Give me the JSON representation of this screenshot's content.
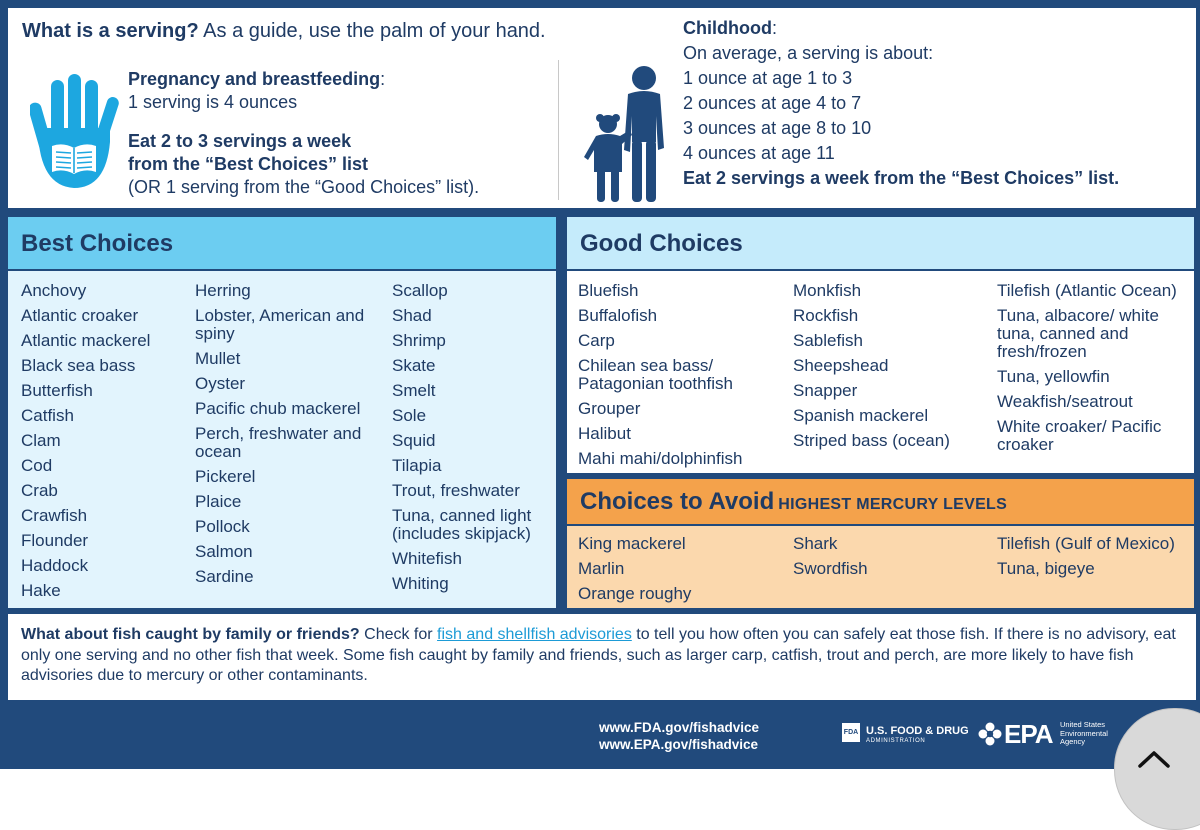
{
  "serving": {
    "title_bold": "What is a serving?",
    "title_rest": " As a guide, use the palm of your hand.",
    "pregnancy_heading": "Pregnancy and breastfeeding",
    "pregnancy_colon": ":",
    "pregnancy_amount": "1 serving is 4 ounces",
    "pregnancy_eat_line1": "Eat 2 to 3 servings a week",
    "pregnancy_eat_line2": "from the “Best Choices” list",
    "pregnancy_alt": "(OR 1 serving from the “Good Choices” list).",
    "childhood_heading": "Childhood",
    "childhood_colon": ":",
    "childhood_intro": "On average, a serving is about:",
    "childhood_amounts": [
      "1 ounce at age 1 to 3",
      "2 ounces at age 4 to 7",
      "3 ounces at age 8 to 10",
      "4 ounces at age 11"
    ],
    "childhood_eat": "Eat 2 servings a week from the “Best Choices” list."
  },
  "best_choices": {
    "title": "Best Choices",
    "col1": [
      "Anchovy",
      "Atlantic croaker",
      "Atlantic mackerel",
      "Black sea bass",
      "Butterfish",
      "Catfish",
      "Clam",
      "Cod",
      "Crab",
      "Crawfish",
      "Flounder",
      "Haddock",
      "Hake"
    ],
    "col2": [
      "Herring",
      "Lobster, American and spiny",
      "Mullet",
      "Oyster",
      "Pacific chub mackerel",
      "Perch, freshwater and ocean",
      "Pickerel",
      "Plaice",
      "Pollock",
      "Salmon",
      "Sardine"
    ],
    "col3": [
      "Scallop",
      "Shad",
      "Shrimp",
      "Skate",
      "Smelt",
      "Sole",
      "Squid",
      "Tilapia",
      "Trout, freshwater",
      "Tuna, canned light (includes skipjack)",
      "Whitefish",
      "Whiting"
    ]
  },
  "good_choices": {
    "title": "Good Choices",
    "col1": [
      "Bluefish",
      "Buffalofish",
      "Carp",
      "Chilean sea bass/ Patagonian toothfish",
      "Grouper",
      "Halibut",
      "Mahi mahi/dolphinfish"
    ],
    "col2": [
      "Monkfish",
      "Rockfish",
      "Sablefish",
      "Sheepshead",
      "Snapper",
      "Spanish mackerel",
      "Striped bass (ocean)"
    ],
    "col3": [
      "Tilefish (Atlantic Ocean)",
      "Tuna, albacore/ white tuna, canned and fresh/frozen",
      "Tuna, yellowfin",
      "Weakfish/seatrout",
      "White croaker/ Pacific croaker"
    ]
  },
  "avoid": {
    "title": "Choices to Avoid",
    "subtitle": "HIGHEST MERCURY LEVELS",
    "col1": [
      "King mackerel",
      "Marlin",
      "Orange roughy"
    ],
    "col2": [
      "Shark",
      "Swordfish"
    ],
    "col3": [
      "Tilefish (Gulf of Mexico)",
      "Tuna, bigeye"
    ]
  },
  "note": {
    "heading": "What about fish caught by family or friends?",
    "text_before": " Check for ",
    "link": "fish and shellfish advisories",
    "text_after": " to tell you how often you can safely eat those fish. If there is no advisory, eat only one serving and no other fish that week. Some fish caught by family and friends, such as larger carp, catfish, trout and perch, are more likely to have fish advisories due to mercury or other contaminants."
  },
  "footer": {
    "url_fda": "www.FDA.gov/fishadvice",
    "url_epa": "www.EPA.gov/fishadvice",
    "fda_mark": "FDA",
    "fda_name": "U.S. FOOD & DRUG",
    "fda_sub": "ADMINISTRATION",
    "epa_word": "EPA",
    "epa_sub_1": "United States",
    "epa_sub_2": "Environmental",
    "epa_sub_3": "Agency"
  },
  "colors": {
    "navy": "#214a7c",
    "text": "#1f3b64",
    "best_head": "#6ccdf1",
    "best_body": "#e2f4fd",
    "good_head": "#c5ebfb",
    "avoid_head": "#f4a24b",
    "avoid_body": "#fbd8ad",
    "link": "#1d9bd6",
    "hand_blue": "#1da7e0"
  },
  "icons": {
    "hand": "palm-hand-icon",
    "children": "children-silhouette-icon",
    "scroll_up": "chevron-up-icon"
  }
}
